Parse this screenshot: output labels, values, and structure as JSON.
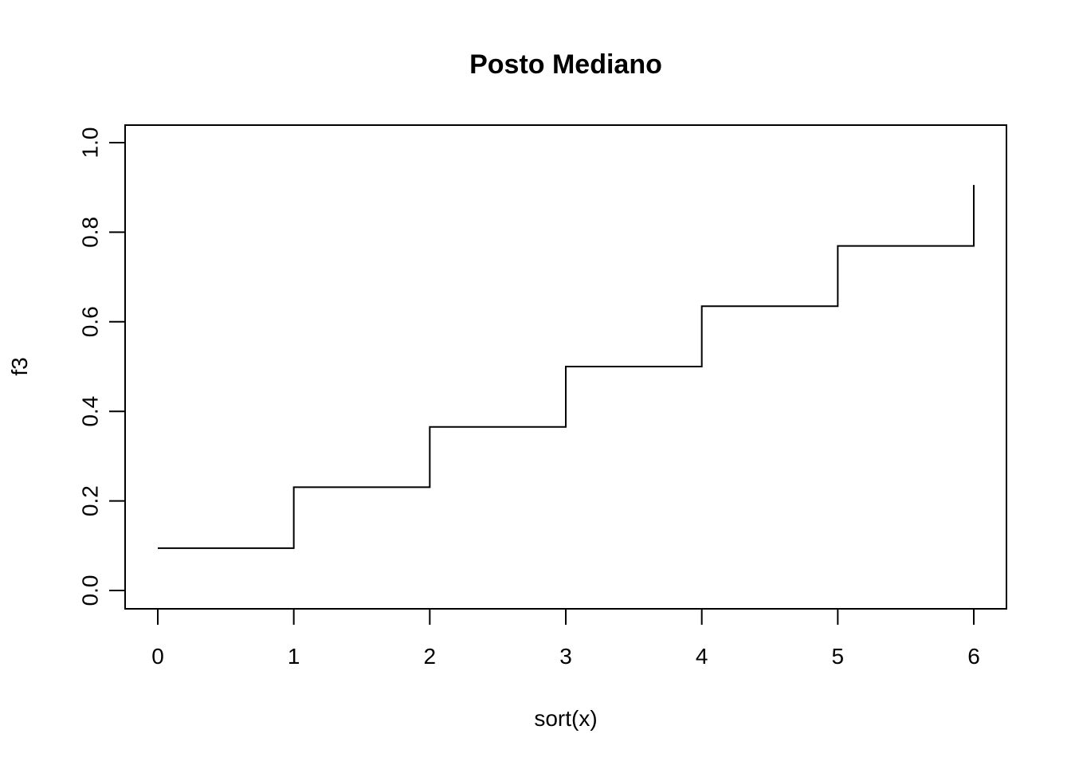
{
  "chart_data": {
    "type": "line",
    "subtype": "step",
    "title": "Posto Mediano",
    "xlabel": "sort(x)",
    "ylabel": "f3",
    "xlim": [
      0,
      6
    ],
    "ylim": [
      0,
      1
    ],
    "x_ticks": [
      "0",
      "1",
      "2",
      "3",
      "4",
      "5",
      "6"
    ],
    "y_ticks": [
      "0.0",
      "0.2",
      "0.4",
      "0.6",
      "0.8",
      "1.0"
    ],
    "grid": false,
    "legend": "none",
    "series": [
      {
        "x": [
          0,
          1,
          2,
          3,
          4,
          5,
          6
        ],
        "values": [
          0.0945,
          0.2307,
          0.3653,
          0.5,
          0.6347,
          0.7693,
          0.9055
        ]
      }
    ],
    "line_color": "#000000"
  }
}
